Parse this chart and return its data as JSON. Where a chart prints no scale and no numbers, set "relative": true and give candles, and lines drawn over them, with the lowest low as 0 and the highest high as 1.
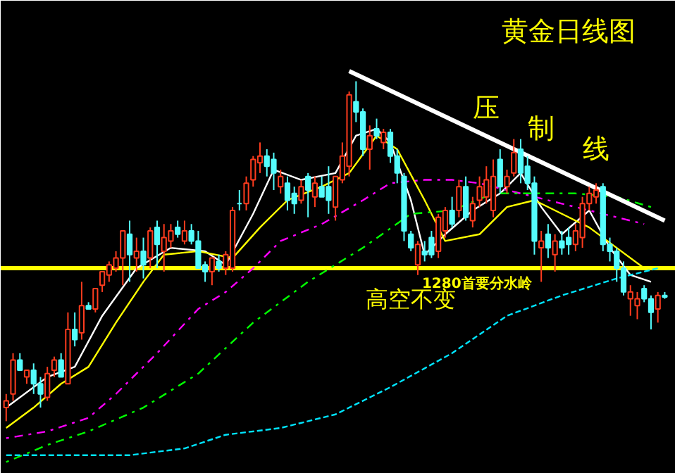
{
  "chart_data": {
    "type": "candlestick",
    "relative": true,
    "title": "黄金日线图",
    "annotations": [
      "压制线",
      "高空不变"
    ],
    "categories": [
      null,
      null,
      null,
      null,
      null,
      null,
      null,
      null,
      null,
      null,
      null,
      null,
      null,
      null,
      null,
      null,
      null,
      null,
      null,
      null,
      null,
      null,
      null,
      null,
      null,
      null,
      null,
      null,
      null,
      null,
      null,
      null,
      null,
      null,
      null,
      null,
      null,
      null,
      null,
      null,
      null,
      null,
      null,
      null,
      null,
      null,
      null,
      null,
      null,
      null,
      null,
      null,
      null,
      null,
      null,
      null,
      null,
      null,
      null,
      null,
      null,
      null,
      null,
      null,
      null,
      null,
      null,
      null,
      null,
      null,
      null,
      null,
      null,
      null,
      null,
      null,
      null,
      null,
      null,
      null,
      null,
      null,
      null,
      null,
      null,
      null,
      null,
      null,
      null,
      null,
      null,
      null,
      null,
      null,
      null,
      null,
      null
    ],
    "ohlc": [
      [
        0.04,
        0.08,
        0,
        0.06
      ],
      [
        0.08,
        0.2,
        0.06,
        0.18
      ],
      [
        0.18,
        0.2,
        0.15,
        0.15
      ],
      [
        0.13,
        0.15,
        0.11,
        0.15
      ],
      [
        0.15,
        0.17,
        0.08,
        0.11
      ],
      [
        0.11,
        0.13,
        0.04,
        0.08
      ],
      [
        0.07,
        0.16,
        0.06,
        0.14
      ],
      [
        0.15,
        0.19,
        0.13,
        0.18
      ],
      [
        0.18,
        0.2,
        0.13,
        0.13
      ],
      [
        0.11,
        0.32,
        0.11,
        0.27
      ],
      [
        0.27,
        0.32,
        0.22,
        0.24
      ],
      [
        0.26,
        0.41,
        0.24,
        0.34
      ],
      [
        0.34,
        0.35,
        0.33,
        0.33
      ],
      [
        0.33,
        0.39,
        0.32,
        0.39
      ],
      [
        0.4,
        0.44,
        0.38,
        0.44
      ],
      [
        0.43,
        0.47,
        0.41,
        0.46
      ],
      [
        0.45,
        0.5,
        0.44,
        0.48
      ],
      [
        0.48,
        0.56,
        0.4,
        0.56
      ],
      [
        0.55,
        0.59,
        0.41,
        0.49
      ],
      [
        0.48,
        0.54,
        0.44,
        0.5
      ],
      [
        0.5,
        0.54,
        0.42,
        0.46
      ],
      [
        0.48,
        0.57,
        0.45,
        0.56
      ],
      [
        0.57,
        0.59,
        0.45,
        0.52
      ],
      [
        0.5,
        0.58,
        0.44,
        0.54
      ],
      [
        0.53,
        0.58,
        0.51,
        0.56
      ],
      [
        0.57,
        0.59,
        0.54,
        0.55
      ],
      [
        0.53,
        0.59,
        0.52,
        0.56
      ],
      [
        0.56,
        0.58,
        0.52,
        0.53
      ],
      [
        0.53,
        0.56,
        0.45,
        0.45
      ],
      [
        0.46,
        0.47,
        0.41,
        0.44
      ],
      [
        0.44,
        0.48,
        0.4,
        0.48
      ],
      [
        0.47,
        0.49,
        0.44,
        0.45
      ],
      [
        0.45,
        0.5,
        0.43,
        0.49
      ],
      [
        0.45,
        0.63,
        0.44,
        0.62
      ],
      [
        0.64,
        0.68,
        0.62,
        0.64
      ],
      [
        0.64,
        0.72,
        0.62,
        0.7
      ],
      [
        0.71,
        0.78,
        0.69,
        0.77
      ],
      [
        0.76,
        0.82,
        0.73,
        0.78
      ],
      [
        0.78,
        0.8,
        0.72,
        0.75
      ],
      [
        0.77,
        0.79,
        0.68,
        0.73
      ],
      [
        0.69,
        0.74,
        0.67,
        0.72
      ],
      [
        0.7,
        0.72,
        0.62,
        0.65
      ],
      [
        0.67,
        0.69,
        0.61,
        0.64
      ],
      [
        0.65,
        0.71,
        0.64,
        0.69
      ],
      [
        0.72,
        0.73,
        0.6,
        0.68
      ],
      [
        0.66,
        0.72,
        0.63,
        0.7
      ],
      [
        0.69,
        0.72,
        0.66,
        0.66
      ],
      [
        0.69,
        0.75,
        0.61,
        0.65
      ],
      [
        0.63,
        0.72,
        0.59,
        0.72
      ],
      [
        0.71,
        0.82,
        0.7,
        0.78
      ],
      [
        0.75,
        0.97,
        0.72,
        0.96
      ],
      [
        0.94,
        1,
        0.88,
        0.91
      ],
      [
        0.91,
        0.92,
        0.78,
        0.8
      ],
      [
        0.8,
        0.87,
        0.74,
        0.84
      ],
      [
        0.86,
        0.89,
        0.83,
        0.84
      ],
      [
        0.82,
        0.86,
        0.8,
        0.85
      ],
      [
        0.85,
        0.86,
        0.76,
        0.78
      ],
      [
        0.78,
        0.8,
        0.7,
        0.73
      ],
      [
        0.72,
        0.73,
        0.53,
        0.56
      ],
      [
        0.55,
        0.56,
        0.5,
        0.51
      ],
      [
        0.46,
        0.53,
        0.43,
        0.52
      ],
      [
        0.5,
        0.53,
        0.47,
        0.49
      ],
      [
        0.54,
        0.56,
        0.48,
        0.49
      ],
      [
        0.5,
        0.61,
        0.48,
        0.6
      ],
      [
        0.56,
        0.63,
        0.54,
        0.62
      ],
      [
        0.62,
        0.66,
        0.57,
        0.58
      ],
      [
        0.62,
        0.71,
        0.6,
        0.69
      ],
      [
        0.69,
        0.72,
        0.59,
        0.6
      ],
      [
        0.59,
        0.66,
        0.57,
        0.64
      ],
      [
        0.65,
        0.72,
        0.63,
        0.69
      ],
      [
        0.66,
        0.75,
        0.64,
        0.71
      ],
      [
        0.62,
        0.77,
        0.6,
        0.72
      ],
      [
        0.77,
        0.8,
        0.67,
        0.69
      ],
      [
        0.69,
        0.74,
        0.67,
        0.72
      ],
      [
        0.73,
        0.83,
        0.72,
        0.79
      ],
      [
        0.8,
        0.83,
        0.7,
        0.73
      ],
      [
        0.75,
        0.78,
        0.68,
        0.7
      ],
      [
        0.7,
        0.72,
        0.49,
        0.53
      ],
      [
        0.51,
        0.56,
        0.41,
        0.53
      ],
      [
        0.55,
        0.58,
        0.48,
        0.51
      ],
      [
        0.49,
        0.55,
        0.44,
        0.53
      ],
      [
        0.53,
        0.56,
        0.49,
        0.51
      ],
      [
        0.54,
        0.57,
        0.49,
        0.52
      ],
      [
        0.52,
        0.58,
        0.5,
        0.56
      ],
      [
        0.54,
        0.66,
        0.51,
        0.64
      ],
      [
        0.64,
        0.69,
        0.62,
        0.67
      ],
      [
        0.66,
        0.7,
        0.64,
        0.68
      ],
      [
        0.69,
        0.7,
        0.5,
        0.52
      ],
      [
        0.52,
        0.54,
        0.47,
        0.5
      ],
      [
        0.5,
        0.51,
        0.41,
        0.45
      ],
      [
        0.45,
        0.47,
        0.37,
        0.38
      ],
      [
        0.36,
        0.4,
        0.31,
        0.38
      ],
      [
        0.34,
        0.38,
        0.3,
        0.36
      ],
      [
        0.39,
        0.4,
        0.35,
        0.36
      ],
      [
        0.36,
        0.37,
        0.27,
        0.32
      ],
      [
        0.33,
        0.38,
        0.29,
        0.37
      ],
      [
        0.37,
        0.38,
        0.36,
        0.365
      ]
    ],
    "colors": [
      "#ff3c1e",
      "#ff3c1e",
      "#54fcfc",
      "#ff3c1e",
      "#54fcfc",
      "#54fcfc",
      "#ff3c1e",
      "#ff3c1e",
      "#54fcfc",
      "#ff3c1e",
      "#54fcfc",
      "#ff3c1e",
      "#54fcfc",
      "#ff3c1e",
      "#ff3c1e",
      "#ff3c1e",
      "#ff3c1e",
      "#ff3c1e",
      "#54fcfc",
      "#ff3c1e",
      "#54fcfc",
      "#ff3c1e",
      "#54fcfc",
      "#ff3c1e",
      "#ff3c1e",
      "#54fcfc",
      "#ff3c1e",
      "#54fcfc",
      "#54fcfc",
      "#54fcfc",
      "#ff3c1e",
      "#54fcfc",
      "#ff3c1e",
      "#ff3c1e",
      "#54fcfc",
      "#ff3c1e",
      "#ff3c1e",
      "#ff3c1e",
      "#54fcfc",
      "#54fcfc",
      "#ff3c1e",
      "#54fcfc",
      "#54fcfc",
      "#ff3c1e",
      "#54fcfc",
      "#ff3c1e",
      "#54fcfc",
      "#54fcfc",
      "#ff3c1e",
      "#ff3c1e",
      "#ff3c1e",
      "#54fcfc",
      "#54fcfc",
      "#ff3c1e",
      "#54fcfc",
      "#ff3c1e",
      "#54fcfc",
      "#54fcfc",
      "#54fcfc",
      "#54fcfc",
      "#ff3c1e",
      "#54fcfc",
      "#54fcfc",
      "#ff3c1e",
      "#ff3c1e",
      "#54fcfc",
      "#ff3c1e",
      "#54fcfc",
      "#ff3c1e",
      "#ff3c1e",
      "#ff3c1e",
      "#ff3c1e",
      "#54fcfc",
      "#ff3c1e",
      "#ff3c1e",
      "#54fcfc",
      "#54fcfc",
      "#54fcfc",
      "#ff3c1e",
      "#54fcfc",
      "#ff3c1e",
      "#54fcfc",
      "#54fcfc",
      "#ff3c1e",
      "#ff3c1e",
      "#ff3c1e",
      "#ff3c1e",
      "#54fcfc",
      "#54fcfc",
      "#54fcfc",
      "#54fcfc",
      "#ff3c1e",
      "#ff3c1e",
      "#54fcfc",
      "#54fcfc",
      "#ff3c1e",
      "#54fcfc"
    ],
    "series": [
      {
        "type": "line",
        "color": "#ffffff",
        "line_style": "solid",
        "values": [
          0.04,
          null,
          null,
          null,
          null,
          null,
          0.13,
          null,
          null,
          null,
          0.16,
          null,
          null,
          null,
          0.31,
          null,
          null,
          null,
          null,
          0.45,
          null,
          null,
          null,
          null,
          0.51,
          null,
          null,
          null,
          null,
          0.5,
          null,
          null,
          0.46,
          null,
          null,
          null,
          0.61,
          null,
          null,
          0.74,
          null,
          null,
          null,
          0.71,
          null,
          null,
          null,
          null,
          0.73,
          null,
          null,
          0.84,
          null,
          null,
          0.86,
          null,
          0.82,
          null,
          null,
          0.65,
          null,
          0.49,
          null,
          null,
          0.55,
          null,
          null,
          null,
          0.62,
          null,
          null,
          null,
          0.67,
          null,
          null,
          0.73,
          null,
          null,
          0.63,
          null,
          null,
          0.55,
          null,
          null,
          null,
          0.62,
          null,
          null,
          0.51,
          null,
          null,
          0.43,
          null,
          null,
          0.41,
          null,
          null
        ]
      },
      {
        "type": "line",
        "color": "#ffff00",
        "line_style": "solid",
        "values": [
          -0.02,
          null,
          null,
          null,
          0.04,
          null,
          null,
          null,
          0.11,
          null,
          null,
          null,
          0.16,
          null,
          null,
          null,
          0.29,
          null,
          null,
          null,
          0.41,
          null,
          null,
          0.49,
          null,
          null,
          null,
          null,
          0.5,
          null,
          null,
          null,
          null,
          0.48,
          null,
          null,
          null,
          0.57,
          null,
          null,
          null,
          0.65,
          null,
          null,
          null,
          null,
          0.69,
          null,
          null,
          null,
          0.73,
          null,
          null,
          null,
          0.84,
          null,
          null,
          0.8,
          null,
          null,
          null,
          0.65,
          null,
          null,
          0.53,
          null,
          null,
          null,
          null,
          0.55,
          null,
          null,
          null,
          0.63,
          null,
          null,
          null,
          0.65,
          null,
          null,
          null,
          0.61,
          null,
          null,
          null,
          0.57,
          null,
          null,
          null,
          0.51,
          null,
          null,
          null,
          0.45,
          null,
          null,
          null
        ]
      },
      {
        "type": "line",
        "color": "#ff00ff",
        "line_style": "dotted",
        "values": [
          -0.05,
          null,
          null,
          null,
          null,
          null,
          -0.03,
          null,
          null,
          null,
          null,
          null,
          0.01,
          null,
          null,
          null,
          0.08,
          null,
          null,
          null,
          null,
          null,
          0.2,
          null,
          null,
          null,
          null,
          null,
          0.33,
          null,
          null,
          null,
          0.38,
          null,
          null,
          null,
          0.45,
          null,
          null,
          null,
          0.53,
          null,
          null,
          null,
          null,
          null,
          0.58,
          null,
          null,
          null,
          null,
          null,
          0.65,
          null,
          null,
          null,
          0.7,
          null,
          null,
          null,
          null,
          0.71,
          null,
          null,
          null,
          0.71,
          null,
          null,
          null,
          0.7,
          null,
          null,
          null,
          null,
          null,
          0.67,
          null,
          null,
          null,
          null,
          null,
          0.64,
          null,
          null,
          null,
          null,
          null,
          0.61,
          null,
          null,
          null,
          null,
          null,
          0.58,
          null,
          null,
          null
        ]
      },
      {
        "type": "line",
        "color": "#00ff00",
        "line_style": "dotted",
        "values": [
          -0.12,
          null,
          null,
          null,
          null,
          null,
          -0.07,
          null,
          null,
          null,
          null,
          null,
          -0.03,
          null,
          null,
          null,
          null,
          null,
          null,
          null,
          0.04,
          null,
          null,
          null,
          null,
          null,
          null,
          null,
          0.14,
          null,
          null,
          null,
          null,
          null,
          null,
          null,
          0.29,
          null,
          null,
          null,
          null,
          null,
          null,
          null,
          0.41,
          null,
          null,
          null,
          null,
          null,
          null,
          null,
          0.51,
          null,
          null,
          null,
          null,
          null,
          null,
          0.61,
          null,
          null,
          null,
          null,
          null,
          0.62,
          null,
          null,
          null,
          null,
          null,
          0.67,
          null,
          null,
          null,
          null,
          null,
          0.67,
          null,
          null,
          null,
          null,
          null,
          0.67,
          null,
          null,
          null,
          null,
          null,
          0.66,
          null,
          null,
          null,
          null,
          0.63,
          null,
          null
        ]
      },
      {
        "type": "line",
        "color": "#00e5ff",
        "line_style": "dashed",
        "values": [
          -0.1,
          null,
          null,
          null,
          null,
          null,
          null,
          null,
          null,
          null,
          -0.1,
          null,
          null,
          null,
          null,
          null,
          null,
          null,
          -0.1,
          null,
          null,
          null,
          null,
          null,
          null,
          null,
          -0.08,
          null,
          null,
          null,
          null,
          null,
          -0.04,
          null,
          null,
          null,
          null,
          null,
          null,
          null,
          -0.02,
          null,
          null,
          null,
          null,
          null,
          null,
          null,
          0.02,
          null,
          null,
          null,
          null,
          null,
          null,
          null,
          0.1,
          null,
          null,
          null,
          null,
          null,
          null,
          null,
          null,
          0.2,
          null,
          null,
          null,
          null,
          null,
          null,
          null,
          0.31,
          null,
          null,
          null,
          null,
          null,
          null,
          null,
          0.37,
          null,
          null,
          null,
          null,
          null,
          null,
          null,
          0.42,
          null,
          null,
          null,
          null,
          null,
          0.45,
          null
        ]
      },
      {
        "type": "line",
        "color": "#ffffff",
        "line_style": "solid",
        "values": [
          null,
          null,
          null,
          null,
          null,
          null,
          null,
          null,
          null,
          null,
          null,
          null,
          null,
          null,
          null,
          null,
          null,
          null,
          null,
          null,
          null,
          null,
          null,
          null,
          null,
          null,
          null,
          null,
          null,
          null,
          null,
          null,
          null,
          null,
          null,
          null,
          null,
          null,
          null,
          null,
          null,
          null,
          null,
          null,
          null,
          null,
          null,
          null,
          null,
          null,
          1.03,
          null,
          null,
          null,
          null,
          null,
          null,
          null,
          null,
          null,
          null,
          null,
          null,
          null,
          null,
          null,
          null,
          null,
          null,
          null,
          null,
          null,
          null,
          null,
          null,
          null,
          null,
          null,
          null,
          null,
          null,
          null,
          null,
          null,
          null,
          null,
          null,
          null,
          null,
          null,
          null,
          null,
          null,
          null,
          null,
          null,
          0.59
        ]
      }
    ],
    "ref_lines": [
      {
        "axis": "y",
        "value": 0.45,
        "label": "1280首要分水岭",
        "color": "#ffff00"
      }
    ]
  }
}
